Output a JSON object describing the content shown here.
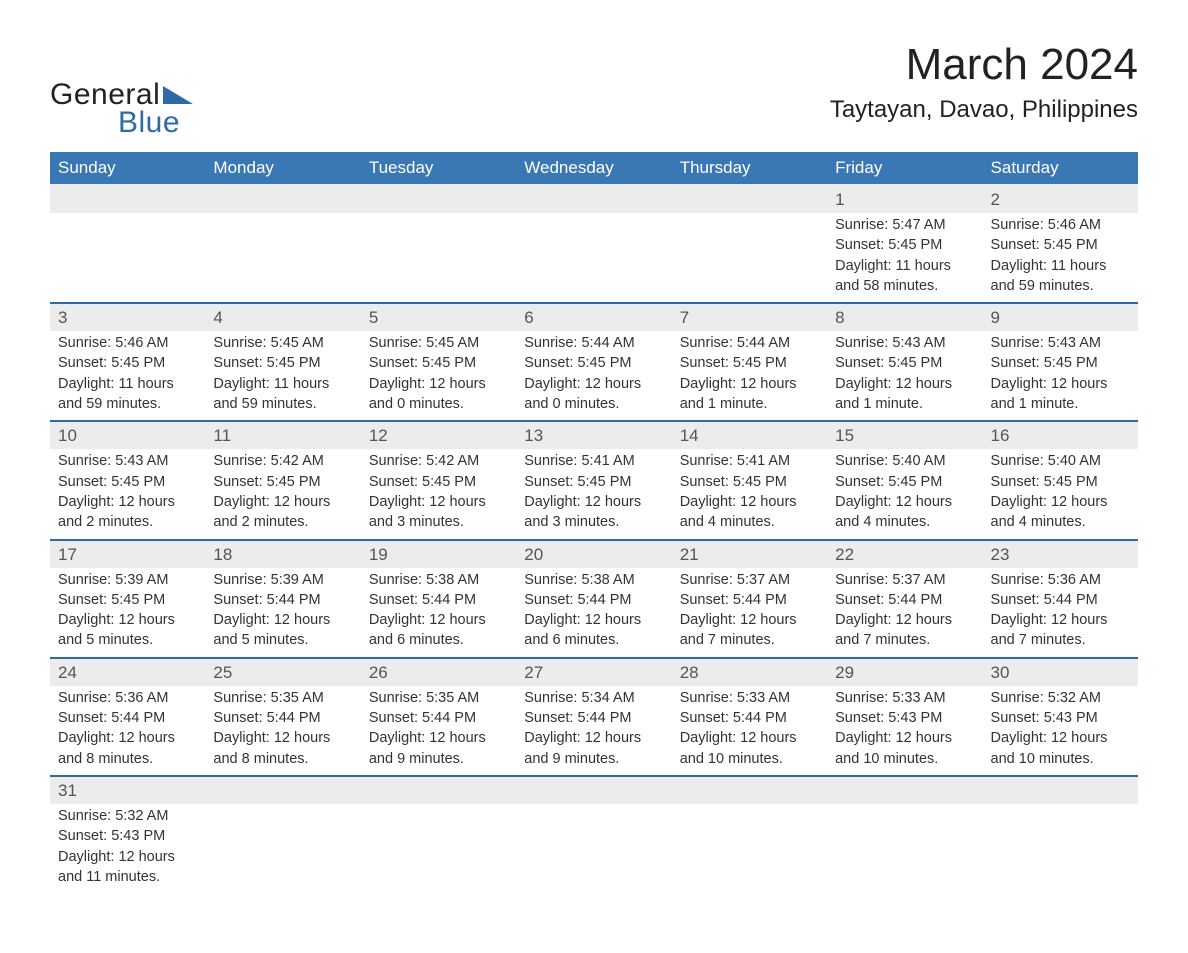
{
  "colors": {
    "header_bg": "#3a78b5",
    "header_text": "#ffffff",
    "daynum_bg": "#ececec",
    "daynum_text": "#555555",
    "details_bg": "#ffffff",
    "details_text": "#333333",
    "row_divider": "#2f6aa8",
    "logo_dark": "#222222",
    "logo_blue": "#2f6aa8",
    "title_color": "#222222"
  },
  "logo": {
    "line1": "General",
    "line2": "Blue"
  },
  "title": "March 2024",
  "location": "Taytayan, Davao, Philippines",
  "weekdays": [
    "Sunday",
    "Monday",
    "Tuesday",
    "Wednesday",
    "Thursday",
    "Friday",
    "Saturday"
  ],
  "weeks": [
    [
      null,
      null,
      null,
      null,
      null,
      {
        "n": "1",
        "sunrise": "5:47 AM",
        "sunset": "5:45 PM",
        "daylight": "11 hours and 58 minutes."
      },
      {
        "n": "2",
        "sunrise": "5:46 AM",
        "sunset": "5:45 PM",
        "daylight": "11 hours and 59 minutes."
      }
    ],
    [
      {
        "n": "3",
        "sunrise": "5:46 AM",
        "sunset": "5:45 PM",
        "daylight": "11 hours and 59 minutes."
      },
      {
        "n": "4",
        "sunrise": "5:45 AM",
        "sunset": "5:45 PM",
        "daylight": "11 hours and 59 minutes."
      },
      {
        "n": "5",
        "sunrise": "5:45 AM",
        "sunset": "5:45 PM",
        "daylight": "12 hours and 0 minutes."
      },
      {
        "n": "6",
        "sunrise": "5:44 AM",
        "sunset": "5:45 PM",
        "daylight": "12 hours and 0 minutes."
      },
      {
        "n": "7",
        "sunrise": "5:44 AM",
        "sunset": "5:45 PM",
        "daylight": "12 hours and 1 minute."
      },
      {
        "n": "8",
        "sunrise": "5:43 AM",
        "sunset": "5:45 PM",
        "daylight": "12 hours and 1 minute."
      },
      {
        "n": "9",
        "sunrise": "5:43 AM",
        "sunset": "5:45 PM",
        "daylight": "12 hours and 1 minute."
      }
    ],
    [
      {
        "n": "10",
        "sunrise": "5:43 AM",
        "sunset": "5:45 PM",
        "daylight": "12 hours and 2 minutes."
      },
      {
        "n": "11",
        "sunrise": "5:42 AM",
        "sunset": "5:45 PM",
        "daylight": "12 hours and 2 minutes."
      },
      {
        "n": "12",
        "sunrise": "5:42 AM",
        "sunset": "5:45 PM",
        "daylight": "12 hours and 3 minutes."
      },
      {
        "n": "13",
        "sunrise": "5:41 AM",
        "sunset": "5:45 PM",
        "daylight": "12 hours and 3 minutes."
      },
      {
        "n": "14",
        "sunrise": "5:41 AM",
        "sunset": "5:45 PM",
        "daylight": "12 hours and 4 minutes."
      },
      {
        "n": "15",
        "sunrise": "5:40 AM",
        "sunset": "5:45 PM",
        "daylight": "12 hours and 4 minutes."
      },
      {
        "n": "16",
        "sunrise": "5:40 AM",
        "sunset": "5:45 PM",
        "daylight": "12 hours and 4 minutes."
      }
    ],
    [
      {
        "n": "17",
        "sunrise": "5:39 AM",
        "sunset": "5:45 PM",
        "daylight": "12 hours and 5 minutes."
      },
      {
        "n": "18",
        "sunrise": "5:39 AM",
        "sunset": "5:44 PM",
        "daylight": "12 hours and 5 minutes."
      },
      {
        "n": "19",
        "sunrise": "5:38 AM",
        "sunset": "5:44 PM",
        "daylight": "12 hours and 6 minutes."
      },
      {
        "n": "20",
        "sunrise": "5:38 AM",
        "sunset": "5:44 PM",
        "daylight": "12 hours and 6 minutes."
      },
      {
        "n": "21",
        "sunrise": "5:37 AM",
        "sunset": "5:44 PM",
        "daylight": "12 hours and 7 minutes."
      },
      {
        "n": "22",
        "sunrise": "5:37 AM",
        "sunset": "5:44 PM",
        "daylight": "12 hours and 7 minutes."
      },
      {
        "n": "23",
        "sunrise": "5:36 AM",
        "sunset": "5:44 PM",
        "daylight": "12 hours and 7 minutes."
      }
    ],
    [
      {
        "n": "24",
        "sunrise": "5:36 AM",
        "sunset": "5:44 PM",
        "daylight": "12 hours and 8 minutes."
      },
      {
        "n": "25",
        "sunrise": "5:35 AM",
        "sunset": "5:44 PM",
        "daylight": "12 hours and 8 minutes."
      },
      {
        "n": "26",
        "sunrise": "5:35 AM",
        "sunset": "5:44 PM",
        "daylight": "12 hours and 9 minutes."
      },
      {
        "n": "27",
        "sunrise": "5:34 AM",
        "sunset": "5:44 PM",
        "daylight": "12 hours and 9 minutes."
      },
      {
        "n": "28",
        "sunrise": "5:33 AM",
        "sunset": "5:44 PM",
        "daylight": "12 hours and 10 minutes."
      },
      {
        "n": "29",
        "sunrise": "5:33 AM",
        "sunset": "5:43 PM",
        "daylight": "12 hours and 10 minutes."
      },
      {
        "n": "30",
        "sunrise": "5:32 AM",
        "sunset": "5:43 PM",
        "daylight": "12 hours and 10 minutes."
      }
    ],
    [
      {
        "n": "31",
        "sunrise": "5:32 AM",
        "sunset": "5:43 PM",
        "daylight": "12 hours and 11 minutes."
      },
      null,
      null,
      null,
      null,
      null,
      null
    ]
  ],
  "labels": {
    "sunrise": "Sunrise: ",
    "sunset": "Sunset: ",
    "daylight": "Daylight: "
  }
}
